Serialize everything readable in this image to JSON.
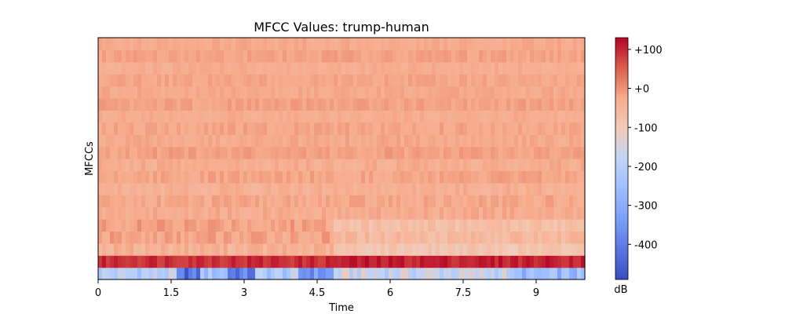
{
  "chart_data": {
    "type": "heatmap",
    "title": "MFCC Values: trump-human",
    "xlabel": "Time",
    "ylabel": "MFCCs",
    "xlim": [
      0,
      10
    ],
    "x_ticks": [
      0,
      1.5,
      3,
      4.5,
      6,
      7.5,
      9
    ],
    "x_tick_labels": [
      "0",
      "1.5",
      "3",
      "4.5",
      "6",
      "7.5",
      "9"
    ],
    "n_coefficients": 20,
    "n_frames": 431,
    "colormap": "coolwarm",
    "value_range": [
      -490,
      130
    ],
    "colorbar": {
      "label": "dB",
      "ticks": [
        100,
        0,
        -100,
        -200,
        -300,
        -400
      ],
      "tick_labels": [
        "+100",
        "+0",
        "-100",
        "-200",
        "-300",
        "-400"
      ]
    },
    "coefficient_profile": [
      {
        "coefficient": 0,
        "segment_means": [
          {
            "time": [
              0,
              1.6
            ],
            "value": -200
          },
          {
            "time": [
              1.6,
              2.1
            ],
            "value": -420
          },
          {
            "time": [
              2.1,
              2.7
            ],
            "value": -240
          },
          {
            "time": [
              2.7,
              3.2
            ],
            "value": -400
          },
          {
            "time": [
              3.2,
              4.1
            ],
            "value": -220
          },
          {
            "time": [
              4.1,
              4.8
            ],
            "value": -350
          },
          {
            "time": [
              4.8,
              8.5
            ],
            "value": -170
          },
          {
            "time": [
              8.5,
              10
            ],
            "value": -270
          }
        ]
      },
      {
        "coefficient": 1,
        "segment_means": [
          {
            "time": [
              0,
              4.8
            ],
            "value": 95
          },
          {
            "time": [
              4.8,
              10
            ],
            "value": 105
          }
        ]
      },
      {
        "coefficient": 2,
        "segment_means": [
          {
            "time": [
              0,
              4.8
            ],
            "value": -40
          },
          {
            "time": [
              4.8,
              10
            ],
            "value": -90
          }
        ]
      },
      {
        "coefficient": 3,
        "segment_means": [
          {
            "time": [
              0,
              4.8
            ],
            "value": -20
          },
          {
            "time": [
              4.8,
              10
            ],
            "value": -55
          }
        ]
      },
      {
        "coefficient": 4,
        "segment_means": [
          {
            "time": [
              0,
              4.8
            ],
            "value": -15
          },
          {
            "time": [
              4.8,
              10
            ],
            "value": -70
          }
        ]
      },
      {
        "coefficient": 5,
        "segment_means": [
          {
            "time": [
              0,
              10
            ],
            "value": -30
          }
        ]
      },
      {
        "coefficient": 6,
        "segment_means": [
          {
            "time": [
              0,
              10
            ],
            "value": -25
          }
        ]
      },
      {
        "coefficient": 7,
        "segment_means": [
          {
            "time": [
              0,
              10
            ],
            "value": -35
          }
        ]
      },
      {
        "coefficient": 8,
        "segment_means": [
          {
            "time": [
              0,
              10
            ],
            "value": -20
          }
        ]
      },
      {
        "coefficient": 9,
        "segment_means": [
          {
            "time": [
              0,
              10
            ],
            "value": -30
          }
        ]
      },
      {
        "coefficient": 10,
        "segment_means": [
          {
            "time": [
              0,
              10
            ],
            "value": -15
          }
        ]
      },
      {
        "coefficient": 11,
        "segment_means": [
          {
            "time": [
              0,
              10
            ],
            "value": -25
          }
        ]
      },
      {
        "coefficient": 12,
        "segment_means": [
          {
            "time": [
              0,
              10
            ],
            "value": -20
          }
        ]
      },
      {
        "coefficient": 13,
        "segment_means": [
          {
            "time": [
              0,
              10
            ],
            "value": -30
          }
        ]
      },
      {
        "coefficient": 14,
        "segment_means": [
          {
            "time": [
              0,
              10
            ],
            "value": -15
          }
        ]
      },
      {
        "coefficient": 15,
        "segment_means": [
          {
            "time": [
              0,
              10
            ],
            "value": -25
          }
        ]
      },
      {
        "coefficient": 16,
        "segment_means": [
          {
            "time": [
              0,
              10
            ],
            "value": -20
          }
        ]
      },
      {
        "coefficient": 17,
        "segment_means": [
          {
            "time": [
              0,
              10
            ],
            "value": -30
          }
        ]
      },
      {
        "coefficient": 18,
        "segment_means": [
          {
            "time": [
              0,
              10
            ],
            "value": -15
          }
        ]
      },
      {
        "coefficient": 19,
        "segment_means": [
          {
            "time": [
              0,
              10
            ],
            "value": -25
          }
        ]
      }
    ]
  }
}
